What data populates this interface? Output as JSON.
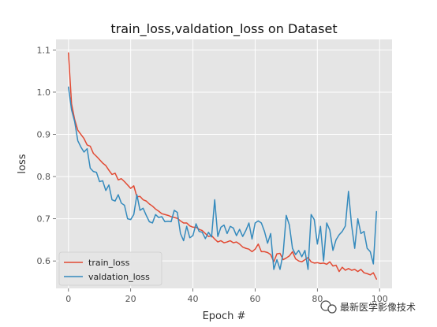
{
  "chart_data": {
    "type": "line",
    "title": "train_loss,valdation_loss on Dataset",
    "xlabel": "Epoch #",
    "ylabel": "loss",
    "xlim": [
      -4,
      104
    ],
    "ylim": [
      0.535,
      1.125
    ],
    "xticks": [
      0,
      20,
      40,
      60,
      80,
      100
    ],
    "yticks": [
      0.6,
      0.7,
      0.8,
      0.9,
      1.0,
      1.1
    ],
    "grid": true,
    "legend_position": "lower-left",
    "series": [
      {
        "name": "train_loss",
        "color": "#e24a33",
        "x": [
          0,
          1,
          2,
          3,
          4,
          5,
          6,
          7,
          8,
          9,
          10,
          11,
          12,
          13,
          14,
          15,
          16,
          17,
          18,
          19,
          20,
          21,
          22,
          23,
          24,
          25,
          26,
          27,
          28,
          29,
          30,
          31,
          32,
          33,
          34,
          35,
          36,
          37,
          38,
          39,
          40,
          41,
          42,
          43,
          44,
          45,
          46,
          47,
          48,
          49,
          50,
          51,
          52,
          53,
          54,
          55,
          56,
          57,
          58,
          59,
          60,
          61,
          62,
          63,
          64,
          65,
          66,
          67,
          68,
          69,
          70,
          71,
          72,
          73,
          74,
          75,
          76,
          77,
          78,
          79,
          80,
          81,
          82,
          83,
          84,
          85,
          86,
          87,
          88,
          89,
          90,
          91,
          92,
          93,
          94,
          95,
          96,
          97,
          98,
          99
        ],
        "values": [
          1.093,
          0.972,
          0.935,
          0.91,
          0.9,
          0.89,
          0.875,
          0.872,
          0.855,
          0.848,
          0.84,
          0.832,
          0.826,
          0.815,
          0.805,
          0.808,
          0.792,
          0.795,
          0.788,
          0.78,
          0.772,
          0.778,
          0.752,
          0.753,
          0.745,
          0.742,
          0.735,
          0.73,
          0.723,
          0.718,
          0.712,
          0.71,
          0.708,
          0.705,
          0.703,
          0.701,
          0.695,
          0.69,
          0.69,
          0.683,
          0.68,
          0.68,
          0.675,
          0.672,
          0.665,
          0.658,
          0.66,
          0.652,
          0.645,
          0.648,
          0.643,
          0.645,
          0.648,
          0.643,
          0.645,
          0.64,
          0.633,
          0.63,
          0.628,
          0.622,
          0.628,
          0.64,
          0.622,
          0.622,
          0.62,
          0.615,
          0.598,
          0.617,
          0.618,
          0.603,
          0.607,
          0.612,
          0.622,
          0.605,
          0.6,
          0.598,
          0.603,
          0.608,
          0.598,
          0.595,
          0.596,
          0.594,
          0.595,
          0.592,
          0.598,
          0.588,
          0.59,
          0.575,
          0.585,
          0.578,
          0.582,
          0.578,
          0.58,
          0.575,
          0.58,
          0.572,
          0.57,
          0.567,
          0.572,
          0.557
        ]
      },
      {
        "name": "valdation_loss",
        "color": "#348abd",
        "x": [
          0,
          1,
          2,
          3,
          4,
          5,
          6,
          7,
          8,
          9,
          10,
          11,
          12,
          13,
          14,
          15,
          16,
          17,
          18,
          19,
          20,
          21,
          22,
          23,
          24,
          25,
          26,
          27,
          28,
          29,
          30,
          31,
          32,
          33,
          34,
          35,
          36,
          37,
          38,
          39,
          40,
          41,
          42,
          43,
          44,
          45,
          46,
          47,
          48,
          49,
          50,
          51,
          52,
          53,
          54,
          55,
          56,
          57,
          58,
          59,
          60,
          61,
          62,
          63,
          64,
          65,
          66,
          67,
          68,
          69,
          70,
          71,
          72,
          73,
          74,
          75,
          76,
          77,
          78,
          79,
          80,
          81,
          82,
          83,
          84,
          85,
          86,
          87,
          88,
          89,
          90,
          91,
          92,
          93,
          94,
          95,
          96,
          97,
          98,
          99
        ],
        "values": [
          1.012,
          0.958,
          0.93,
          0.885,
          0.87,
          0.858,
          0.866,
          0.82,
          0.812,
          0.81,
          0.788,
          0.79,
          0.767,
          0.78,
          0.745,
          0.742,
          0.757,
          0.737,
          0.732,
          0.7,
          0.698,
          0.71,
          0.757,
          0.72,
          0.725,
          0.708,
          0.693,
          0.69,
          0.71,
          0.703,
          0.705,
          0.693,
          0.694,
          0.693,
          0.72,
          0.715,
          0.665,
          0.648,
          0.682,
          0.655,
          0.66,
          0.688,
          0.67,
          0.668,
          0.653,
          0.668,
          0.657,
          0.745,
          0.658,
          0.68,
          0.685,
          0.665,
          0.682,
          0.678,
          0.66,
          0.675,
          0.658,
          0.672,
          0.69,
          0.652,
          0.69,
          0.695,
          0.69,
          0.67,
          0.642,
          0.665,
          0.58,
          0.603,
          0.58,
          0.618,
          0.708,
          0.685,
          0.63,
          0.615,
          0.625,
          0.61,
          0.625,
          0.58,
          0.71,
          0.698,
          0.64,
          0.682,
          0.6,
          0.69,
          0.673,
          0.625,
          0.65,
          0.662,
          0.67,
          0.683,
          0.765,
          0.685,
          0.63,
          0.7,
          0.665,
          0.67,
          0.63,
          0.622,
          0.593,
          0.717
        ]
      }
    ]
  },
  "watermark": {
    "icon": "wechat-icon",
    "text": "最新医学影像技术"
  }
}
